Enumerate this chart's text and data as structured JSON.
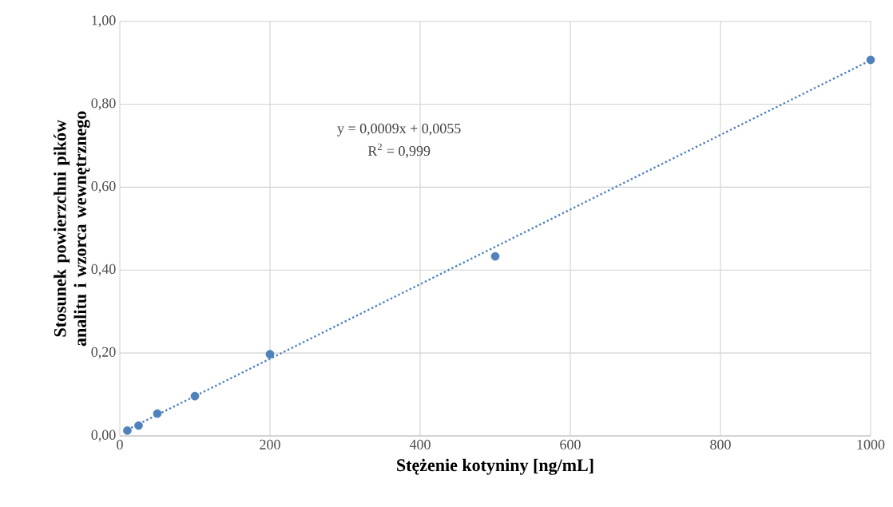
{
  "chart_data": {
    "type": "scatter",
    "xlabel": "Stężenie kotyniny [ng/mL]",
    "ylabel": "Stosunek powierzchni pików analitu i wzorca wewnętrznego",
    "xlim": [
      0,
      1000
    ],
    "xticks": [
      0,
      200,
      400,
      600,
      800,
      1000
    ],
    "ylim": [
      0,
      1
    ],
    "yticks": [
      {
        "value": 0,
        "label": "0,00"
      },
      {
        "value": 0.2,
        "label": "0,20"
      },
      {
        "value": 0.4,
        "label": "0,40"
      },
      {
        "value": 0.6,
        "label": "0,60"
      },
      {
        "value": 0.8,
        "label": "0,80"
      },
      {
        "value": 1,
        "label": "1,00"
      }
    ],
    "grid": true,
    "series": [
      {
        "color": "#4f81bd",
        "marker": "circle",
        "x": [
          10,
          25,
          50,
          100,
          200,
          500,
          1000
        ],
        "values": [
          0.013,
          0.025,
          0.054,
          0.096,
          0.197,
          0.433,
          0.907
        ]
      },
      {
        "type": "line",
        "color": "#4f81bd",
        "marker": "none",
        "line_style": "dotted",
        "x": [
          10,
          1000
        ],
        "values": [
          0.015,
          0.906
        ]
      }
    ],
    "annotations": [
      "y = 0,0009x + 0,0055",
      "R$^{2}$ = 0,999"
    ]
  }
}
